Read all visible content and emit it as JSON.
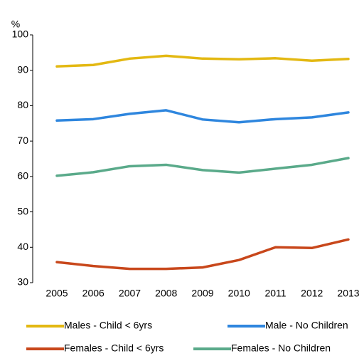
{
  "chart_data": {
    "type": "line",
    "y_label": "%",
    "categories": [
      "2005",
      "2006",
      "2007",
      "2008",
      "2009",
      "2010",
      "2011",
      "2012",
      "2013"
    ],
    "series": [
      {
        "name": "Males - Child < 6yrs",
        "color": "#e3b812",
        "values": [
          91.1,
          91.5,
          93.3,
          94.1,
          93.3,
          93.1,
          93.4,
          92.7,
          93.2
        ]
      },
      {
        "name": "Male - No Children",
        "color": "#2e86de",
        "values": [
          75.8,
          76.2,
          77.7,
          78.7,
          76.1,
          75.3,
          76.2,
          76.7,
          78.1
        ]
      },
      {
        "name": "Females - Child < 6yrs",
        "color": "#c8471b",
        "values": [
          35.8,
          34.7,
          33.9,
          33.9,
          34.3,
          36.4,
          40.0,
          39.8,
          42.2
        ]
      },
      {
        "name": "Females - No Children",
        "color": "#5aaa8a",
        "values": [
          60.2,
          61.2,
          62.9,
          63.3,
          61.8,
          61.1,
          62.2,
          63.3,
          65.2
        ]
      }
    ],
    "ylim": [
      30,
      100
    ],
    "yticks": [
      30,
      40,
      50,
      60,
      70,
      80,
      90,
      100
    ],
    "grid": false
  }
}
